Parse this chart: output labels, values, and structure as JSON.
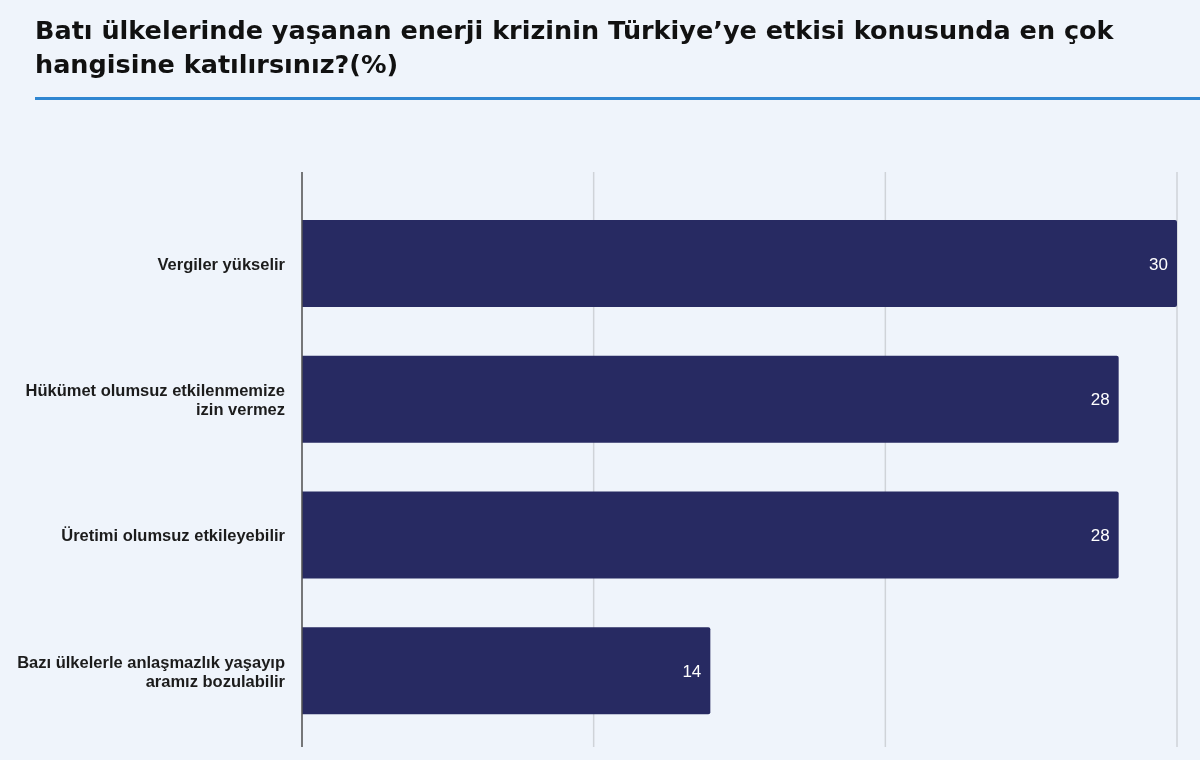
{
  "chart_data": {
    "type": "bar",
    "title": "Batı ülkelerinde yaşanan enerji krizinin Türkiye’ye etkisi konusunda en çok hangisine katılırsınız?(%)",
    "orientation": "horizontal",
    "categories": [
      "Vergiler yükselir",
      "Hükümet olumsuz etkilenmemize izin vermez",
      "Üretimi olumsuz etkileyebilir",
      "Bazı ülkelerle anlaşmazlık yaşayıp aramız bozulabilir"
    ],
    "values": [
      30,
      28,
      28,
      14
    ],
    "color": "#272a62",
    "xlim": [
      0,
      30
    ],
    "xticks": [
      {
        "value": 0,
        "label": null
      },
      {
        "value": 10,
        "label": null
      },
      {
        "value": 20,
        "label": null
      },
      {
        "value": 30,
        "label": null
      }
    ],
    "grid": "x",
    "tick_labels": "y",
    "data_labels": true
  }
}
